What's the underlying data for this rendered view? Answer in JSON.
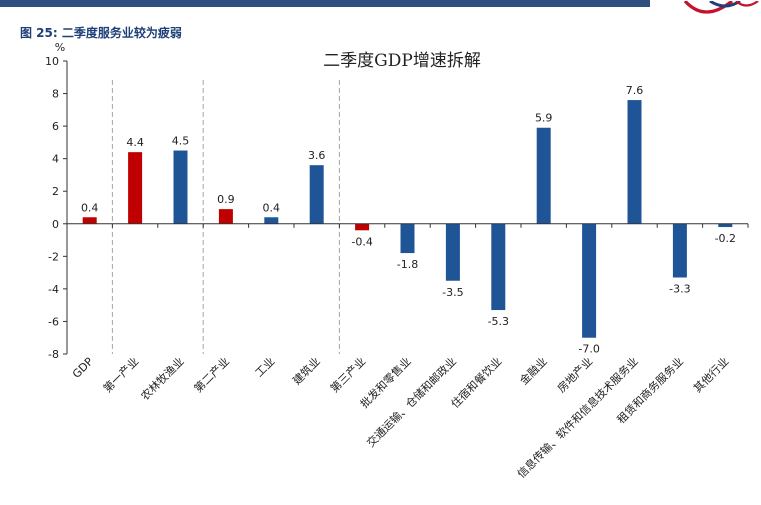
{
  "header": {
    "figure_label": "图 25:",
    "figure_caption": "二季度服务业较为疲弱"
  },
  "chart_data": {
    "type": "bar",
    "title": "二季度GDP增速拆解",
    "ylabel": "%",
    "ylim": [
      -8,
      10
    ],
    "yticks": [
      -8,
      -6,
      -4,
      -2,
      0,
      2,
      4,
      6,
      8,
      10
    ],
    "grid": false,
    "categories": [
      "GDP",
      "第一产业",
      "农林牧渔业",
      "第二产业",
      "工业",
      "建筑业",
      "第三产业",
      "批发和零售业",
      "交通运输、仓储和邮政业",
      "住宿和餐饮业",
      "金融业",
      "房地产业",
      "信息传输、软件和信息技术服务业",
      "租赁和商务服务业",
      "其他行业"
    ],
    "values": [
      0.4,
      4.4,
      4.5,
      0.9,
      0.4,
      3.6,
      -0.4,
      -1.8,
      -3.5,
      -5.3,
      5.9,
      -7.0,
      7.6,
      -3.3,
      -0.2
    ],
    "value_labels": [
      "0.4",
      "4.4",
      "4.5",
      "0.9",
      "0.4",
      "3.6",
      "-0.4",
      "-1.8",
      "-3.5",
      "-5.3",
      "5.9",
      "-7.0",
      "7.6",
      "-3.3",
      "-0.2"
    ],
    "bar_colors": [
      "#c00000",
      "#c00000",
      "#1f5597",
      "#c00000",
      "#1f5597",
      "#1f5597",
      "#c00000",
      "#1f5597",
      "#1f5597",
      "#1f5597",
      "#1f5597",
      "#1f5597",
      "#1f5597",
      "#1f5597",
      "#1f5597"
    ],
    "separators_after_index": [
      0,
      2,
      5
    ]
  },
  "colors": {
    "header_bar": "#2f4f7f",
    "caption_text": "#1f3f78",
    "aggregate_bar": "#c00000",
    "sector_bar": "#1f5597",
    "separator": "#a6a6a6"
  }
}
